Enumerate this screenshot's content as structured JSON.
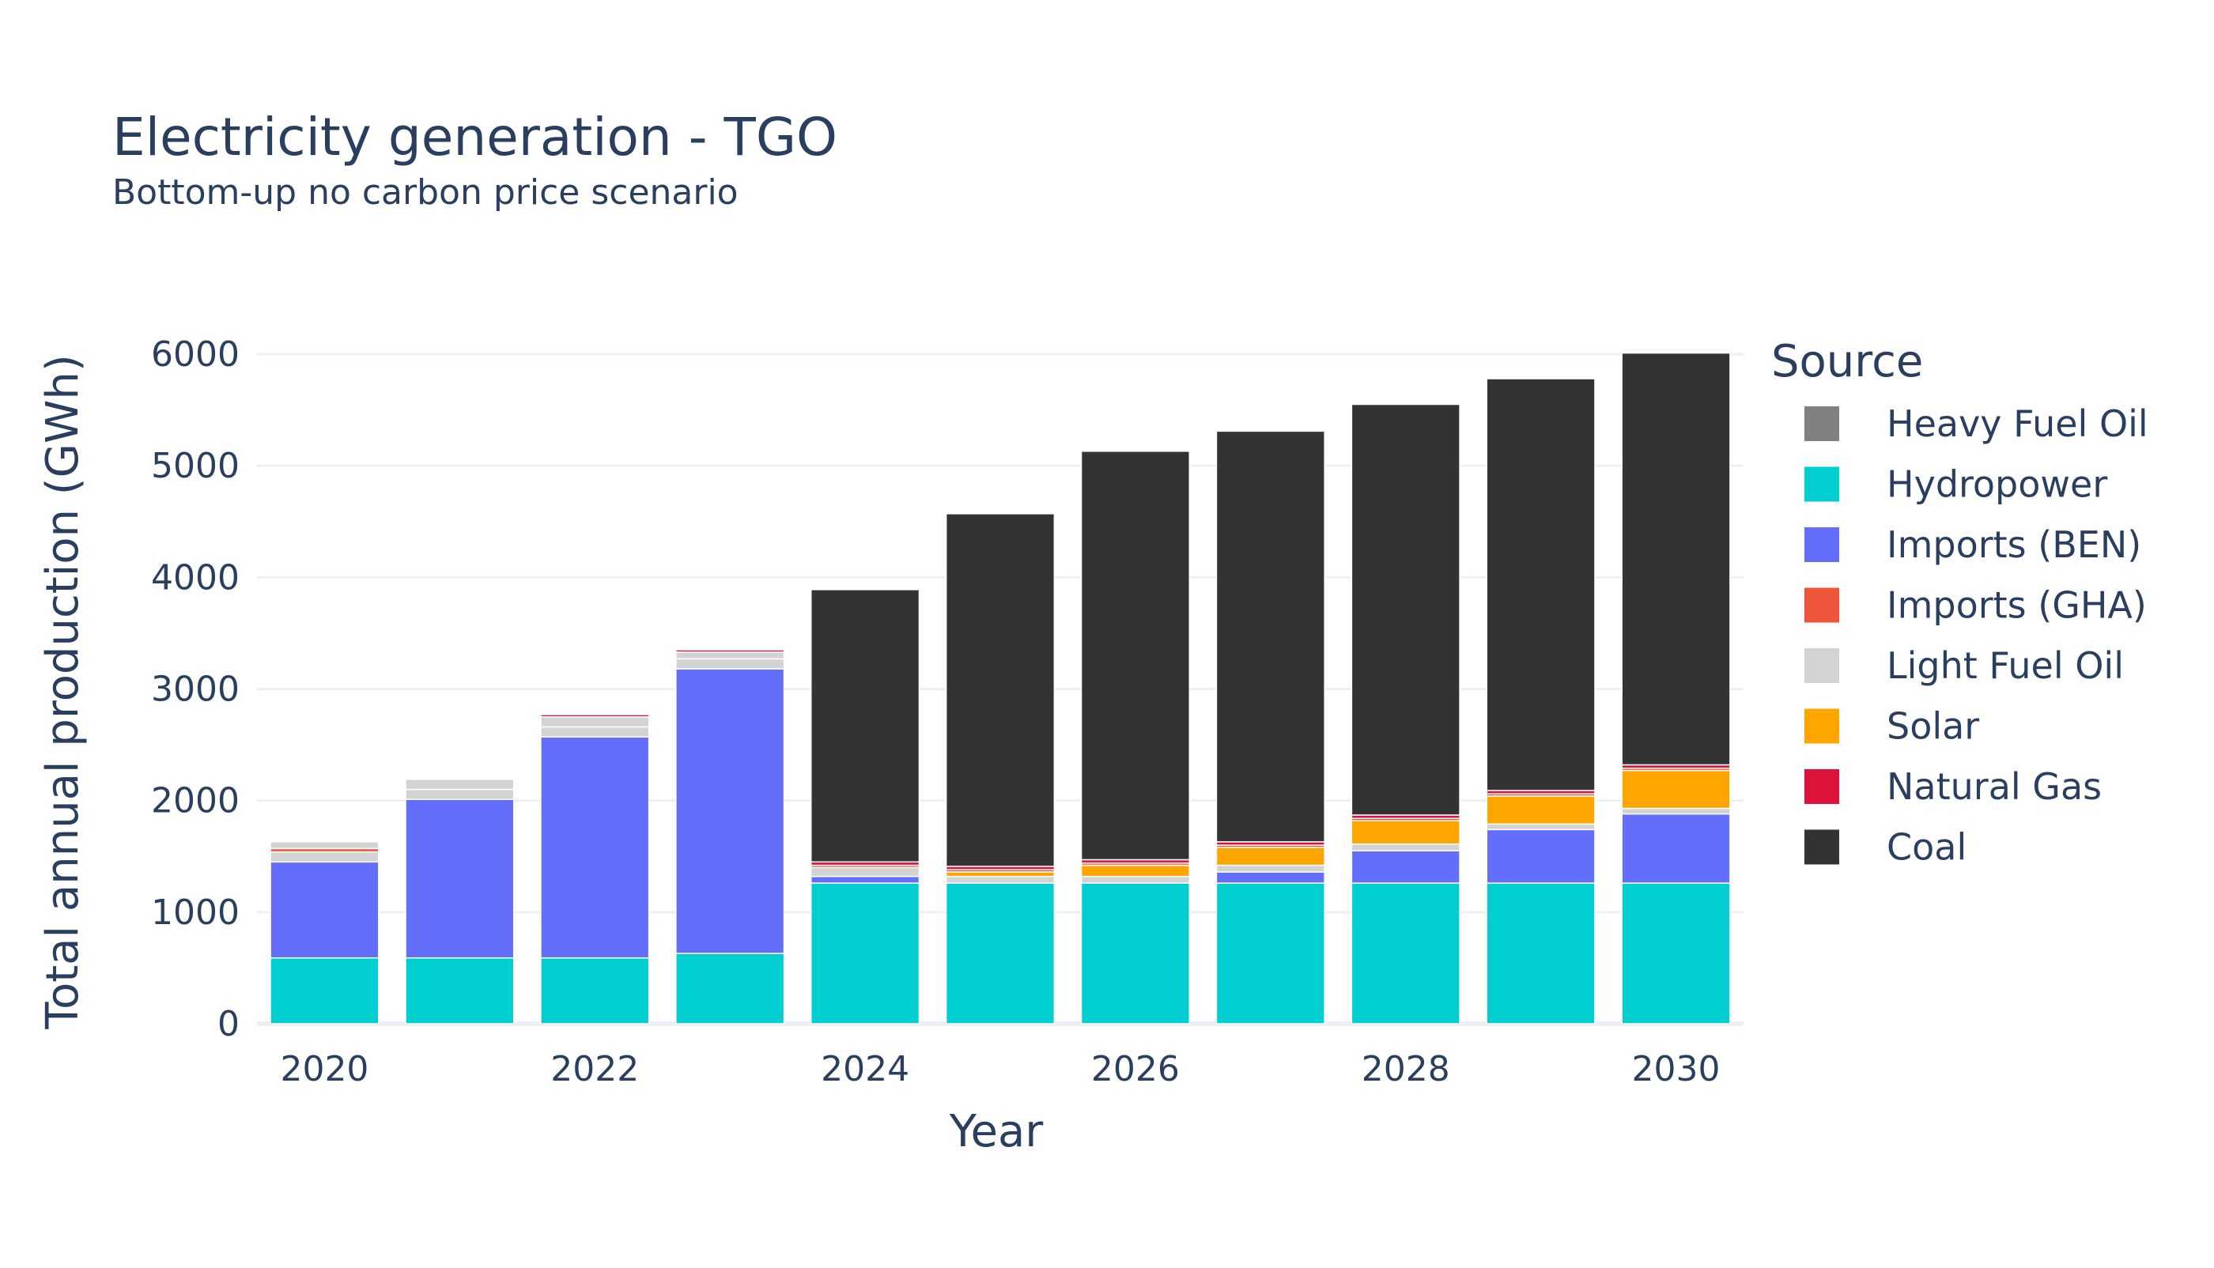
{
  "chart_data": {
    "type": "bar",
    "stacked": true,
    "title": "Electricity generation - TGO",
    "subtitle": "Bottom-up no carbon price scenario",
    "xlabel": "Year",
    "ylabel": "Total annual production (GWh)",
    "ylim": [
      0,
      6000
    ],
    "yticks": [
      "0",
      "1000",
      "2000",
      "3000",
      "4000",
      "5000",
      "6000"
    ],
    "xticks": [
      "2020",
      "2022",
      "2024",
      "2026",
      "2028",
      "2030"
    ],
    "grid": true,
    "legend_title": "Source",
    "legend_position": "right",
    "categories": [
      2020,
      2021,
      2022,
      2023,
      2024,
      2025,
      2026,
      2027,
      2028,
      2029,
      2030
    ],
    "series": [
      {
        "name": "Hydropower",
        "color": "#00CED1",
        "values": [
          590,
          590,
          590,
          630,
          1260,
          1260,
          1260,
          1260,
          1260,
          1260,
          1260
        ]
      },
      {
        "name": "Imports (BEN)",
        "color": "#636EFA",
        "values": [
          860,
          1420,
          1980,
          2550,
          60,
          0,
          0,
          100,
          290,
          480,
          620
        ]
      },
      {
        "name": "Heavy Fuel Oil",
        "color": "#808080",
        "values": [
          0,
          0,
          0,
          0,
          0,
          0,
          0,
          0,
          0,
          0,
          0
        ]
      },
      {
        "name": "Light Fuel Oil",
        "color": "#D3D3D3",
        "values": [
          90,
          90,
          90,
          90,
          80,
          60,
          60,
          60,
          60,
          50,
          50
        ]
      },
      {
        "name": "Solar",
        "color": "#FFA500",
        "values": [
          0,
          0,
          0,
          0,
          0,
          40,
          100,
          160,
          210,
          250,
          340
        ]
      },
      {
        "name": "Imports (GHA)",
        "color": "#EF553B",
        "values": [
          30,
          0,
          0,
          0,
          20,
          20,
          20,
          20,
          20,
          20,
          20
        ]
      },
      {
        "name": "Light Fuel Oil",
        "color": "#D3D3D3",
        "values": [
          60,
          90,
          90,
          60,
          0,
          0,
          0,
          0,
          0,
          0,
          0
        ]
      },
      {
        "name": "Natural Gas",
        "color": "#DC143C",
        "values": [
          0,
          0,
          20,
          20,
          30,
          30,
          30,
          30,
          30,
          30,
          30
        ]
      },
      {
        "name": "Coal",
        "color": "#333333",
        "values": [
          0,
          0,
          0,
          0,
          2440,
          3160,
          3660,
          3680,
          3680,
          3690,
          3690
        ]
      }
    ],
    "legend": [
      {
        "name": "Heavy Fuel Oil",
        "color": "#808080"
      },
      {
        "name": "Hydropower",
        "color": "#00CED1"
      },
      {
        "name": "Imports (BEN)",
        "color": "#636EFA"
      },
      {
        "name": "Imports (GHA)",
        "color": "#EF553B"
      },
      {
        "name": "Light Fuel Oil",
        "color": "#D3D3D3"
      },
      {
        "name": "Solar",
        "color": "#FFA500"
      },
      {
        "name": "Natural Gas",
        "color": "#DC143C"
      },
      {
        "name": "Coal",
        "color": "#333333"
      }
    ]
  }
}
